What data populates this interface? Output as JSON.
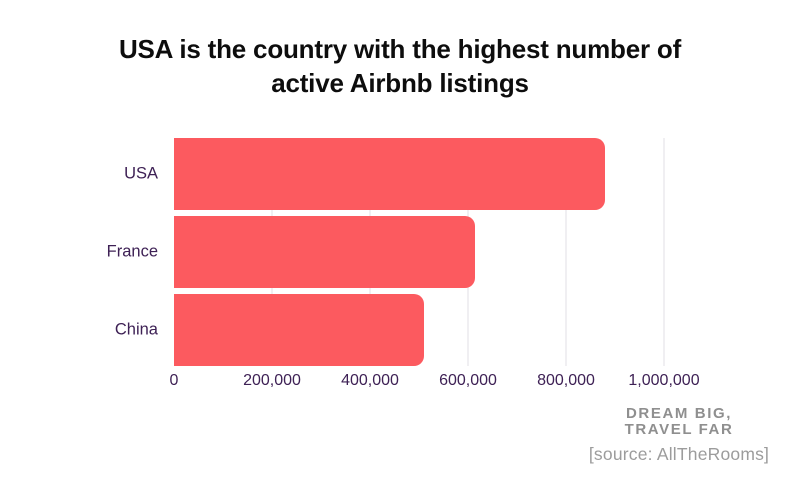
{
  "title": {
    "lines": [
      "USA is the country with the highest number of",
      "active Airbnb listings"
    ]
  },
  "chart_data": {
    "type": "bar",
    "orientation": "horizontal",
    "title": "USA is the country with the highest number of active Airbnb listings",
    "categories": [
      "USA",
      "France",
      "China"
    ],
    "values": [
      880000,
      615000,
      510000
    ],
    "x_ticks": [
      0,
      200000,
      400000,
      600000,
      800000,
      1000000
    ],
    "x_tick_labels": [
      "0",
      "200,000",
      "400,000",
      "600,000",
      "800,000",
      "1,000,000"
    ],
    "xlim": [
      0,
      1100000
    ],
    "xlabel": "",
    "ylabel": "",
    "grid": true,
    "legend": false,
    "bar_color": "#fc5a5f",
    "label_color": "#3e2155",
    "gridline_color": "#f0eff2"
  },
  "footer": {
    "logo_line1": "DREAM BIG,",
    "logo_line2": "TRAVEL FAR",
    "source": "[source: AllTheRooms]"
  }
}
